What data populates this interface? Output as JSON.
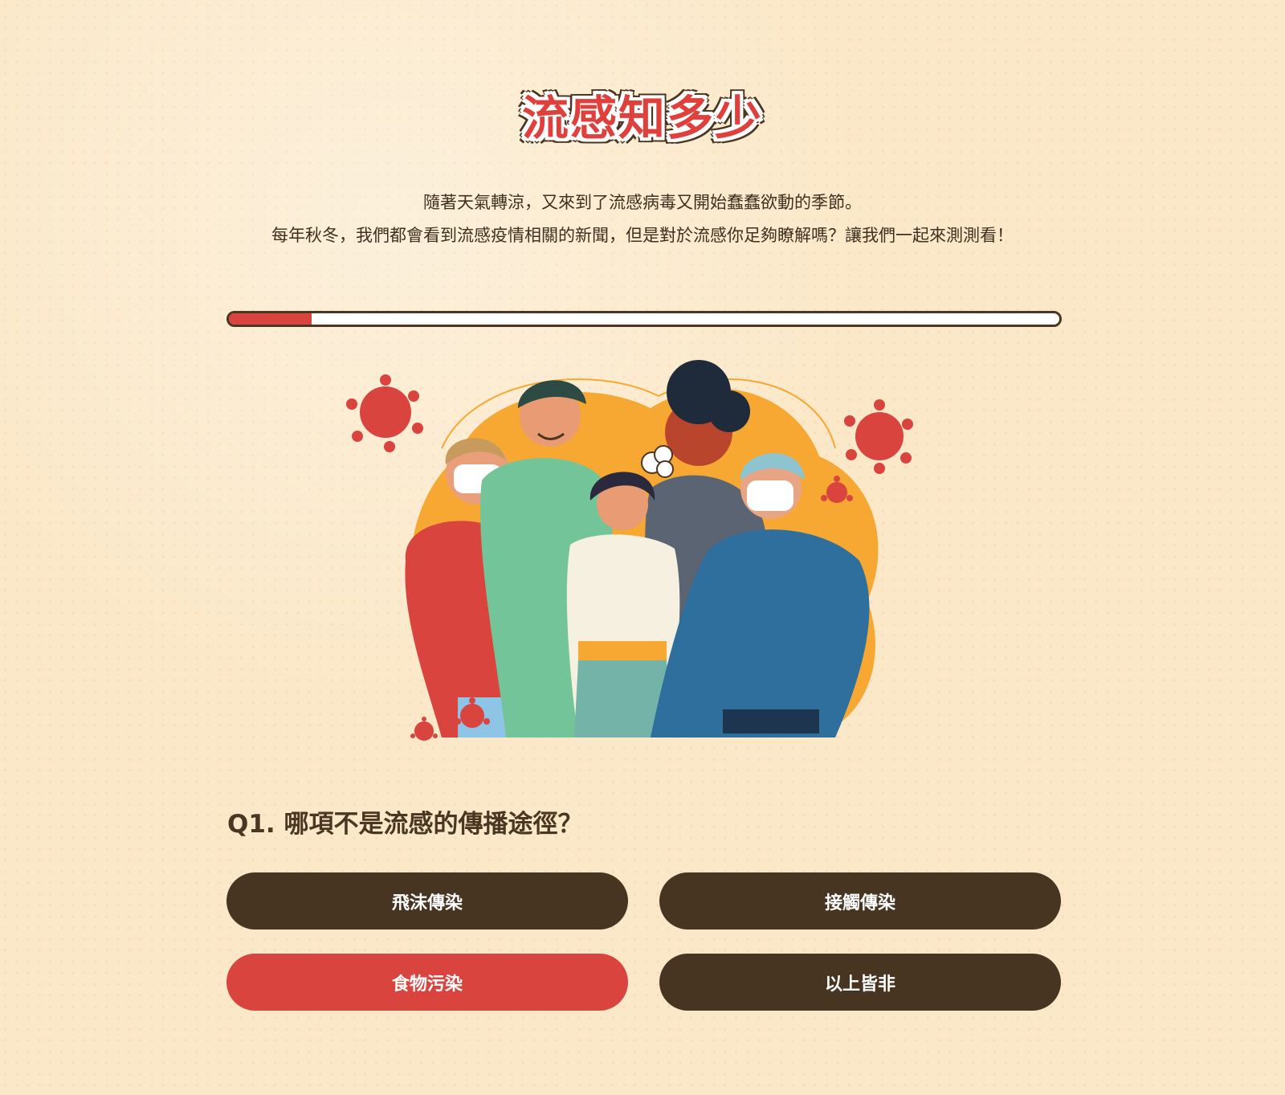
{
  "title": "流感知多少",
  "intro": {
    "line1": "隨著天氣轉涼，又來到了流感病毒又開始蠢蠢欲動的季節。",
    "line2": "每年秋冬，我們都會看到流感疫情相關的新聞，但是對於流感你足夠瞭解嗎？讓我們一起來測測看！"
  },
  "progress": {
    "fraction": 0.1
  },
  "colors": {
    "accent_red": "#d9443f",
    "dark_brown": "#473522",
    "background": "#fbe8c8",
    "blob_orange": "#f6a832"
  },
  "question": {
    "text": "Q1. 哪項不是流感的傳播途徑？"
  },
  "options": [
    {
      "label": "飛沫傳染",
      "selected": false
    },
    {
      "label": "接觸傳染",
      "selected": false
    },
    {
      "label": "食物污染",
      "selected": true
    },
    {
      "label": "以上皆非",
      "selected": false
    }
  ],
  "illustration": {
    "icons": [
      "virus-icon",
      "people-group-icon"
    ]
  }
}
